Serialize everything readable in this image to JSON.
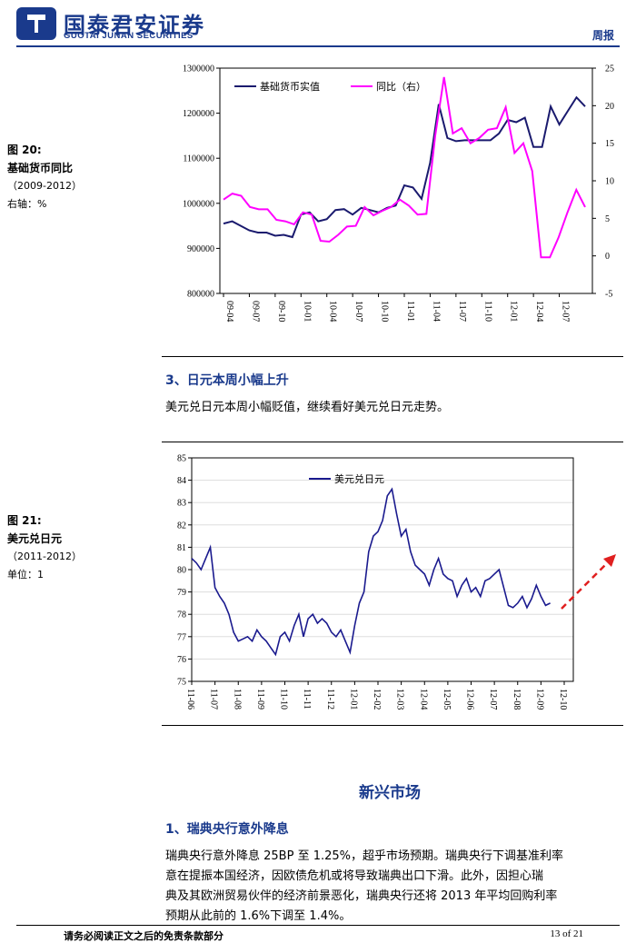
{
  "header": {
    "company_cn": "国泰君安证券",
    "company_en": "GUOTAI JUNAN SECURITIES",
    "report_type": "周报",
    "brand_color": "#1a3a8c"
  },
  "figure20": {
    "label": "图 20:",
    "title": "基础货币同比",
    "period": "（2009-2012）",
    "note": "右轴：%"
  },
  "figure21": {
    "label": "图 21:",
    "title": "美元兑日元",
    "period": "（2011-2012）",
    "note": "单位：1"
  },
  "section3": {
    "heading": "3、日元本周小幅上升",
    "body": "美元兑日元本周小幅贬值，继续看好美元兑日元走势。"
  },
  "emerging": {
    "heading": "新兴市场",
    "sub_heading": "1、瑞典央行意外降息",
    "lines": [
      "瑞典央行意外降息 25BP 至 1.25%，超乎市场预期。瑞典央行下调基准利率",
      "意在提振本国经济，因欧债危机或将导致瑞典出口下滑。此外，因担心瑞",
      "典及其欧洲贸易伙伴的经济前景恶化，瑞典央行还将 2013 年平均回购利率",
      "预期从此前的 1.6%下调至 1.4%。"
    ]
  },
  "footer": {
    "disclaimer": "请务必阅读正文之后的免责条款部分",
    "page": "13 of 21"
  },
  "chart_data": [
    {
      "type": "line",
      "title": "",
      "legend_position": "top-left",
      "x_tick_labels": [
        "09-04",
        "09-07",
        "09-10",
        "10-01",
        "10-04",
        "10-07",
        "10-10",
        "11-01",
        "11-04",
        "11-07",
        "11-10",
        "12-01",
        "12-04",
        "12-07"
      ],
      "ylim": [
        800000,
        1300000
      ],
      "y_ticks": [
        800000,
        900000,
        1000000,
        1100000,
        1200000,
        1300000
      ],
      "y2lim": [
        -5,
        25
      ],
      "y2_ticks": [
        -5,
        0,
        5,
        10,
        15,
        20,
        25
      ],
      "series": [
        {
          "name": "基础货币实值",
          "axis": "left",
          "color": "#1a1a6e",
          "values": [
            955000,
            960000,
            950000,
            940000,
            935000,
            935000,
            928000,
            930000,
            925000,
            975000,
            980000,
            960000,
            965000,
            985000,
            987000,
            975000,
            990000,
            985000,
            980000,
            990000,
            995000,
            1040000,
            1035000,
            1010000,
            1090000,
            1220000,
            1145000,
            1138000,
            1140000,
            1140000,
            1140000,
            1140000,
            1155000,
            1185000,
            1180000,
            1190000,
            1125000,
            1125000,
            1215000,
            1175000,
            1205000,
            1235000,
            1215000
          ]
        },
        {
          "name": "同比（右）",
          "axis": "right",
          "color": "#ff00ff",
          "values": [
            7.5,
            8.3,
            8.0,
            6.5,
            6.2,
            6.2,
            4.8,
            4.6,
            4.2,
            5.8,
            5.5,
            2.0,
            1.9,
            2.8,
            3.9,
            4.0,
            6.5,
            5.4,
            6.0,
            6.5,
            7.5,
            6.7,
            5.5,
            5.6,
            16.0,
            23.8,
            16.3,
            17.0,
            15.0,
            15.7,
            16.8,
            17.0,
            19.8,
            13.7,
            15.0,
            11.3,
            -0.2,
            -0.2,
            2.5,
            5.8,
            8.8,
            6.5
          ]
        }
      ]
    },
    {
      "type": "line",
      "title": "",
      "legend_position": "top-left",
      "x_tick_labels": [
        "11-06",
        "11-07",
        "11-08",
        "11-09",
        "11-10",
        "11-11",
        "11-12",
        "12-01",
        "12-02",
        "12-03",
        "12-04",
        "12-05",
        "12-06",
        "12-07",
        "12-08",
        "12-09",
        "12-10"
      ],
      "ylim": [
        75,
        85
      ],
      "y_ticks": [
        75,
        76,
        77,
        78,
        79,
        80,
        81,
        82,
        83,
        84,
        85
      ],
      "grid": "horizontal",
      "series": [
        {
          "name": "美元兑日元",
          "color": "#1a1a8e",
          "x": [
            0,
            0.2,
            0.4,
            0.6,
            0.8,
            1.0,
            1.2,
            1.4,
            1.6,
            1.8,
            2.0,
            2.2,
            2.4,
            2.6,
            2.8,
            3.0,
            3.2,
            3.4,
            3.6,
            3.8,
            4.0,
            4.2,
            4.4,
            4.6,
            4.8,
            5.0,
            5.2,
            5.4,
            5.6,
            5.8,
            6.0,
            6.2,
            6.4,
            6.6,
            6.8,
            7.0,
            7.2,
            7.4,
            7.6,
            7.8,
            8.0,
            8.2,
            8.4,
            8.6,
            8.8,
            9.0,
            9.2,
            9.4,
            9.6,
            9.8,
            10.0,
            10.2,
            10.4,
            10.6,
            10.8,
            11.0,
            11.2,
            11.4,
            11.6,
            11.8,
            12.0,
            12.2,
            12.4,
            12.6,
            12.8,
            13.0,
            13.2,
            13.4,
            13.6,
            13.8,
            14.0,
            14.2,
            14.4,
            14.6,
            14.8,
            15.0,
            15.2,
            15.4
          ],
          "values": [
            80.5,
            80.3,
            80.0,
            80.5,
            81.0,
            79.2,
            78.8,
            78.5,
            78.0,
            77.2,
            76.8,
            76.9,
            77.0,
            76.8,
            77.3,
            77.0,
            76.8,
            76.5,
            76.2,
            77.0,
            77.2,
            76.8,
            77.5,
            78.0,
            77.0,
            77.8,
            78.0,
            77.6,
            77.8,
            77.6,
            77.2,
            77.0,
            77.3,
            76.8,
            76.3,
            77.5,
            78.5,
            79.0,
            80.8,
            81.5,
            81.7,
            82.2,
            83.3,
            83.6,
            82.5,
            81.5,
            81.8,
            80.8,
            80.2,
            80.0,
            79.8,
            79.3,
            80.0,
            80.5,
            79.8,
            79.6,
            79.5,
            78.8,
            79.3,
            79.6,
            79.0,
            79.2,
            78.8,
            79.5,
            79.6,
            79.8,
            80.0,
            79.2,
            78.4,
            78.3,
            78.5,
            78.8,
            78.3,
            78.7,
            79.3,
            78.8,
            78.4,
            78.5
          ]
        }
      ]
    }
  ]
}
